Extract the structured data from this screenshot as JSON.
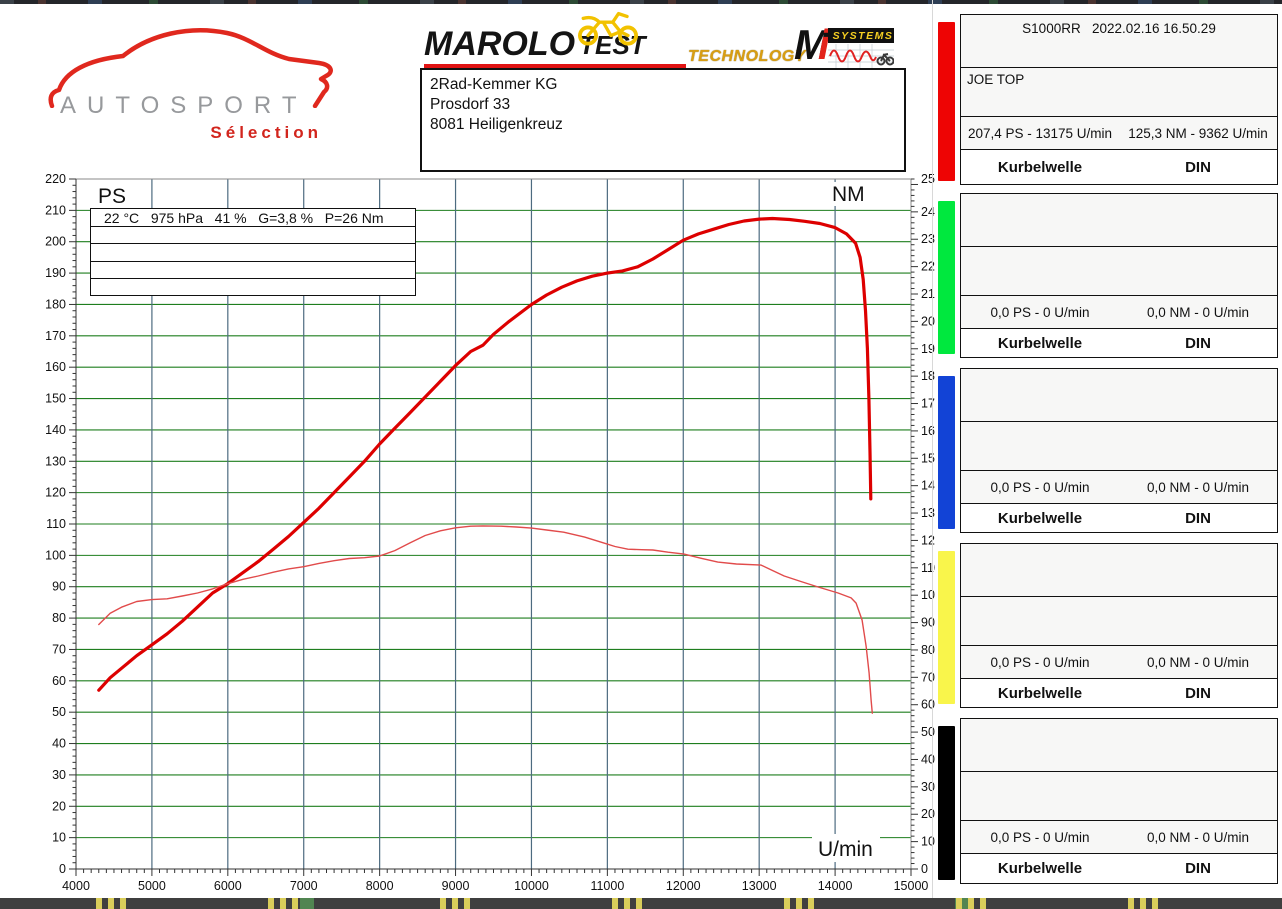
{
  "header": {
    "autosport": {
      "title": "AUTOSPORT",
      "subtitle": "Sélection"
    },
    "marolo": {
      "title": "MAROLO",
      "subtitle": "TEST"
    },
    "technology_label": "TECHNOLOGY",
    "mi": {
      "m": "M",
      "i": "i",
      "systems": "SYSTEMS"
    },
    "address": {
      "lines": [
        "2Rad-Kemmer KG",
        "Prosdorf 33",
        "8081 Heiligenkreuz"
      ]
    }
  },
  "environment_box": {
    "row1": "22 °C   975 hPa   41 %   G=3,8 %   P=26 Nm"
  },
  "chart_data": {
    "type": "line",
    "xlabel": "U/min",
    "ylabel_left": "PS",
    "ylabel_right": "NM",
    "x_range": [
      4000,
      15000
    ],
    "x_major": 1000,
    "x_minor": 100,
    "y_left_range": [
      0,
      220
    ],
    "y_left_major": 10,
    "y_left_minor": 2,
    "y_right_range": [
      0,
      252
    ],
    "y_right_major": 10,
    "y_right_minor": 2,
    "legend_position": "none",
    "grid": {
      "h_color": "#1e7e1e",
      "v_color": "#4d6b80"
    },
    "series": [
      {
        "name": "power_ps",
        "axis": "left",
        "color": "#dd0000",
        "width": 3.2,
        "peak_label": "207,4 PS - 13175 U/min",
        "points": [
          [
            4300,
            57
          ],
          [
            4450,
            61
          ],
          [
            4600,
            64
          ],
          [
            4800,
            68
          ],
          [
            5000,
            71.5
          ],
          [
            5200,
            75
          ],
          [
            5400,
            79
          ],
          [
            5600,
            83.5
          ],
          [
            5800,
            88
          ],
          [
            6000,
            91
          ],
          [
            6200,
            94.5
          ],
          [
            6400,
            98
          ],
          [
            6600,
            102
          ],
          [
            6800,
            106
          ],
          [
            7000,
            110.5
          ],
          [
            7200,
            115
          ],
          [
            7400,
            120
          ],
          [
            7600,
            125
          ],
          [
            7800,
            130
          ],
          [
            8000,
            135.5
          ],
          [
            8200,
            140.5
          ],
          [
            8400,
            145.5
          ],
          [
            8600,
            150.5
          ],
          [
            8800,
            155.5
          ],
          [
            9000,
            160.5
          ],
          [
            9200,
            165
          ],
          [
            9362,
            167
          ],
          [
            9500,
            170.5
          ],
          [
            9700,
            174.5
          ],
          [
            10000,
            180
          ],
          [
            10200,
            183
          ],
          [
            10400,
            185.5
          ],
          [
            10600,
            187.5
          ],
          [
            10800,
            189
          ],
          [
            11000,
            190
          ],
          [
            11200,
            190.7
          ],
          [
            11400,
            192
          ],
          [
            11600,
            194.5
          ],
          [
            11800,
            197.5
          ],
          [
            12000,
            200.5
          ],
          [
            12200,
            202.5
          ],
          [
            12400,
            204
          ],
          [
            12600,
            205.5
          ],
          [
            12800,
            206.6
          ],
          [
            13000,
            207.2
          ],
          [
            13175,
            207.4
          ],
          [
            13400,
            207.1
          ],
          [
            13600,
            206.5
          ],
          [
            13800,
            205.8
          ],
          [
            14000,
            204.5
          ],
          [
            14150,
            202.5
          ],
          [
            14270,
            199.5
          ],
          [
            14330,
            195
          ],
          [
            14370,
            188
          ],
          [
            14400,
            178
          ],
          [
            14425,
            166
          ],
          [
            14445,
            150
          ],
          [
            14460,
            133
          ],
          [
            14470,
            118
          ]
        ]
      },
      {
        "name": "torque_nm",
        "axis": "right",
        "color": "#e14b4b",
        "width": 1.4,
        "peak_label": "125,3 NM - 9362 U/min",
        "points": [
          [
            4300,
            89.3
          ],
          [
            4450,
            93.4
          ],
          [
            4600,
            95.6
          ],
          [
            4800,
            97.7
          ],
          [
            5000,
            98.4
          ],
          [
            5200,
            98.7
          ],
          [
            5400,
            99.7
          ],
          [
            5600,
            100.8
          ],
          [
            5800,
            102.3
          ],
          [
            6000,
            104.2
          ],
          [
            6200,
            105.8
          ],
          [
            6400,
            107
          ],
          [
            6600,
            108.4
          ],
          [
            6800,
            109.6
          ],
          [
            7000,
            110.4
          ],
          [
            7200,
            111.6
          ],
          [
            7400,
            112.6
          ],
          [
            7600,
            113.4
          ],
          [
            7800,
            113.7
          ],
          [
            8000,
            114.3
          ],
          [
            8200,
            116.3
          ],
          [
            8400,
            119.1
          ],
          [
            8600,
            121.8
          ],
          [
            8800,
            123.5
          ],
          [
            9000,
            124.6
          ],
          [
            9200,
            125.2
          ],
          [
            9362,
            125.3
          ],
          [
            9600,
            125.2
          ],
          [
            9800,
            124.9
          ],
          [
            10000,
            124.5
          ],
          [
            10200,
            123.8
          ],
          [
            10425,
            123
          ],
          [
            10700,
            121.2
          ],
          [
            10950,
            119.1
          ],
          [
            11100,
            117.8
          ],
          [
            11270,
            116.8
          ],
          [
            11450,
            116.6
          ],
          [
            11600,
            116.5
          ],
          [
            11800,
            115.7
          ],
          [
            12010,
            115
          ],
          [
            12230,
            113.5
          ],
          [
            12455,
            112.1
          ],
          [
            12700,
            111.4
          ],
          [
            13025,
            111
          ],
          [
            13175,
            109
          ],
          [
            13330,
            107
          ],
          [
            13550,
            105
          ],
          [
            13776,
            103
          ],
          [
            14040,
            100.8
          ],
          [
            14211,
            99
          ],
          [
            14277,
            97.1
          ],
          [
            14356,
            90.9
          ],
          [
            14409,
            81.4
          ],
          [
            14448,
            71.6
          ],
          [
            14475,
            61.7
          ],
          [
            14490,
            56.9
          ]
        ]
      }
    ]
  },
  "panels": [
    {
      "color": "#ee0404",
      "header": "S1000RR   2022.02.16 16.50.29",
      "name": "JOE TOP",
      "power": "207,4 PS - 13175 U/min",
      "torque": "125,3 NM - 9362 U/min",
      "footer_left": "Kurbelwelle",
      "footer_right": "DIN"
    },
    {
      "color": "#00e83e",
      "header": "",
      "name": "",
      "power": "0,0 PS - 0 U/min",
      "torque": "0,0 NM - 0 U/min",
      "footer_left": "Kurbelwelle",
      "footer_right": "DIN"
    },
    {
      "color": "#1243d6",
      "header": "",
      "name": "",
      "power": "0,0 PS - 0 U/min",
      "torque": "0,0 NM - 0 U/min",
      "footer_left": "Kurbelwelle",
      "footer_right": "DIN"
    },
    {
      "color": "#f9f54b",
      "header": "",
      "name": "",
      "power": "0,0 PS - 0 U/min",
      "torque": "0,0 NM - 0 U/min",
      "footer_left": "Kurbelwelle",
      "footer_right": "DIN"
    },
    {
      "color": "#000000",
      "header": "",
      "name": "",
      "power": "0,0 PS - 0 U/min",
      "torque": "0,0 NM - 0 U/min",
      "footer_left": "Kurbelwelle",
      "footer_right": "DIN"
    }
  ]
}
